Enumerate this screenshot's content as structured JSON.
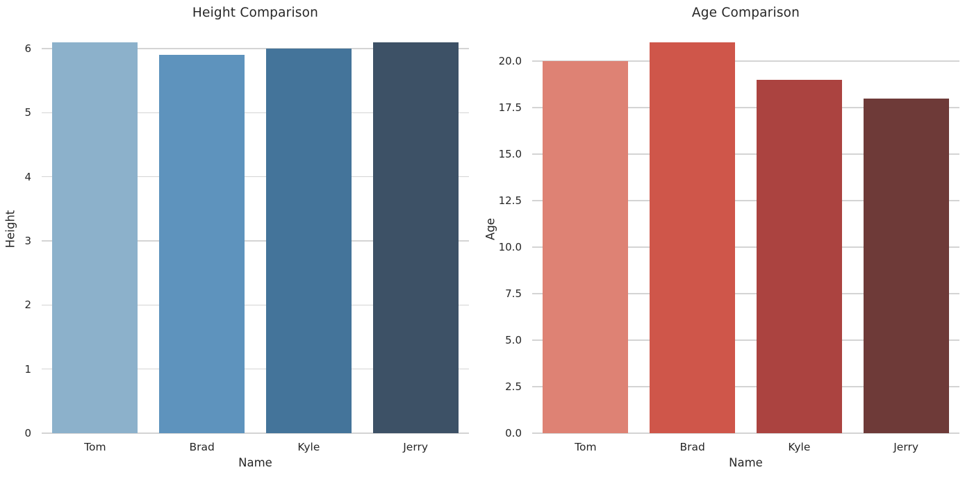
{
  "style": {
    "background": "#ffffff",
    "grid_color": "#d4d4d4",
    "text_color": "#262626"
  },
  "chart_data": [
    {
      "type": "bar",
      "title": "Height Comparison",
      "xlabel": "Name",
      "ylabel": "Height",
      "categories": [
        "Tom",
        "Brad",
        "Kyle",
        "Jerry"
      ],
      "values": [
        6.1,
        5.9,
        6.0,
        6.1
      ],
      "ylim": [
        0,
        6.4
      ],
      "yticks": [
        0,
        1,
        2,
        3,
        4,
        5,
        6
      ],
      "ytick_labels": [
        "0",
        "1",
        "2",
        "3",
        "4",
        "5",
        "6"
      ],
      "bar_colors": [
        "#8cb1cb",
        "#5e93bd",
        "#44749a",
        "#3d5166"
      ],
      "grid": "horizontal",
      "legend": "none"
    },
    {
      "type": "bar",
      "title": "Age Comparison",
      "xlabel": "Name",
      "ylabel": "Age",
      "categories": [
        "Tom",
        "Brad",
        "Kyle",
        "Jerry"
      ],
      "values": [
        20,
        21,
        19,
        18
      ],
      "ylim": [
        0,
        22.05
      ],
      "yticks": [
        0,
        2.5,
        5,
        7.5,
        10,
        12.5,
        15,
        17.5,
        20
      ],
      "ytick_labels": [
        "0.0",
        "2.5",
        "5.0",
        "7.5",
        "10.0",
        "12.5",
        "15.0",
        "17.5",
        "20.0"
      ],
      "bar_colors": [
        "#de8274",
        "#cf564a",
        "#ab4340",
        "#6e3a38"
      ],
      "grid": "horizontal",
      "legend": "none"
    }
  ]
}
